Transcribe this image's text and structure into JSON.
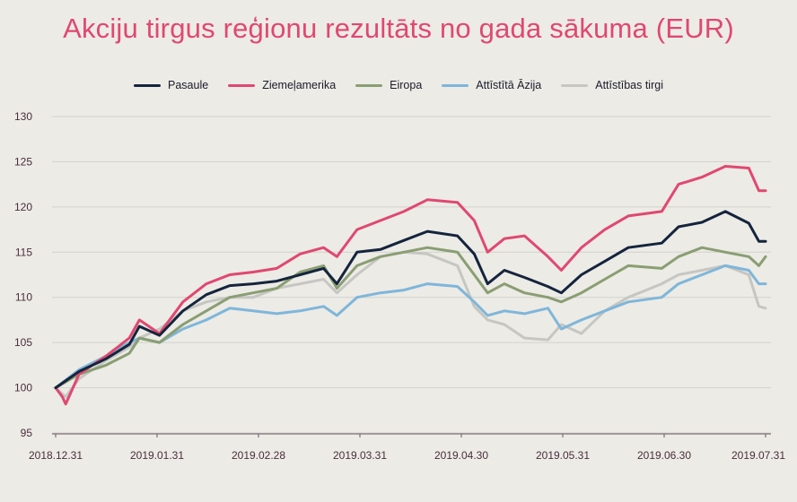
{
  "chart_data": {
    "type": "line",
    "title": "Akciju tirgus reģionu rezultāts no gada sākuma (EUR)",
    "xlabel": "",
    "ylabel": "",
    "ylim": [
      95,
      130
    ],
    "yticks": [
      95,
      100,
      105,
      110,
      115,
      120,
      125,
      130
    ],
    "x_tick_labels": [
      "2018.12.31",
      "2019.01.31",
      "2019.02.28",
      "2019.03.31",
      "2019.04.30",
      "2019.05.31",
      "2019.06.30",
      "2019.07.31"
    ],
    "x_start": "2018-12-31",
    "x_end": "2019-07-31",
    "grid": true,
    "legend_position": "top",
    "series": [
      {
        "name": "Pasaule",
        "color": "#15243d",
        "points": [
          [
            "2018-12-31",
            100
          ],
          [
            "2019-01-07",
            101.8
          ],
          [
            "2019-01-15",
            103.2
          ],
          [
            "2019-01-22",
            104.8
          ],
          [
            "2019-01-25",
            106.8
          ],
          [
            "2019-01-31",
            105.8
          ],
          [
            "2019-02-07",
            108.5
          ],
          [
            "2019-02-14",
            110.3
          ],
          [
            "2019-02-21",
            111.3
          ],
          [
            "2019-02-28",
            111.5
          ],
          [
            "2019-03-07",
            111.8
          ],
          [
            "2019-03-14",
            112.5
          ],
          [
            "2019-03-21",
            113.2
          ],
          [
            "2019-03-25",
            111.5
          ],
          [
            "2019-03-31",
            115.0
          ],
          [
            "2019-04-07",
            115.3
          ],
          [
            "2019-04-14",
            116.3
          ],
          [
            "2019-04-21",
            117.3
          ],
          [
            "2019-04-30",
            116.8
          ],
          [
            "2019-05-05",
            114.8
          ],
          [
            "2019-05-09",
            111.5
          ],
          [
            "2019-05-14",
            113.0
          ],
          [
            "2019-05-20",
            112.2
          ],
          [
            "2019-05-27",
            111.2
          ],
          [
            "2019-05-31",
            110.5
          ],
          [
            "2019-06-06",
            112.5
          ],
          [
            "2019-06-13",
            114.0
          ],
          [
            "2019-06-20",
            115.5
          ],
          [
            "2019-06-30",
            116.0
          ],
          [
            "2019-07-05",
            117.8
          ],
          [
            "2019-07-12",
            118.3
          ],
          [
            "2019-07-19",
            119.5
          ],
          [
            "2019-07-26",
            118.2
          ],
          [
            "2019-07-29",
            116.2
          ],
          [
            "2019-07-31",
            116.2
          ]
        ]
      },
      {
        "name": "Ziemeļamerika",
        "color": "#e04870",
        "points": [
          [
            "2018-12-31",
            100
          ],
          [
            "2019-01-02",
            99.0
          ],
          [
            "2019-01-03",
            98.2
          ],
          [
            "2019-01-07",
            101.5
          ],
          [
            "2019-01-15",
            103.5
          ],
          [
            "2019-01-22",
            105.5
          ],
          [
            "2019-01-25",
            107.5
          ],
          [
            "2019-01-31",
            106.0
          ],
          [
            "2019-02-07",
            109.5
          ],
          [
            "2019-02-14",
            111.5
          ],
          [
            "2019-02-21",
            112.5
          ],
          [
            "2019-02-28",
            112.8
          ],
          [
            "2019-03-07",
            113.2
          ],
          [
            "2019-03-14",
            114.8
          ],
          [
            "2019-03-21",
            115.5
          ],
          [
            "2019-03-25",
            114.5
          ],
          [
            "2019-03-31",
            117.5
          ],
          [
            "2019-04-07",
            118.5
          ],
          [
            "2019-04-14",
            119.5
          ],
          [
            "2019-04-21",
            120.8
          ],
          [
            "2019-04-30",
            120.5
          ],
          [
            "2019-05-05",
            118.5
          ],
          [
            "2019-05-09",
            115.0
          ],
          [
            "2019-05-14",
            116.5
          ],
          [
            "2019-05-20",
            116.8
          ],
          [
            "2019-05-27",
            114.5
          ],
          [
            "2019-05-31",
            113.0
          ],
          [
            "2019-06-06",
            115.5
          ],
          [
            "2019-06-13",
            117.5
          ],
          [
            "2019-06-20",
            119.0
          ],
          [
            "2019-06-30",
            119.5
          ],
          [
            "2019-07-05",
            122.5
          ],
          [
            "2019-07-12",
            123.3
          ],
          [
            "2019-07-19",
            124.5
          ],
          [
            "2019-07-26",
            124.3
          ],
          [
            "2019-07-29",
            121.8
          ],
          [
            "2019-07-31",
            121.8
          ]
        ]
      },
      {
        "name": "Eiropa",
        "color": "#8a9e72",
        "points": [
          [
            "2018-12-31",
            100
          ],
          [
            "2019-01-07",
            101.5
          ],
          [
            "2019-01-15",
            102.5
          ],
          [
            "2019-01-22",
            103.8
          ],
          [
            "2019-01-25",
            105.5
          ],
          [
            "2019-01-31",
            105.0
          ],
          [
            "2019-02-07",
            107.0
          ],
          [
            "2019-02-14",
            108.5
          ],
          [
            "2019-02-21",
            110.0
          ],
          [
            "2019-02-28",
            110.5
          ],
          [
            "2019-03-07",
            111.0
          ],
          [
            "2019-03-14",
            112.8
          ],
          [
            "2019-03-21",
            113.5
          ],
          [
            "2019-03-25",
            111.0
          ],
          [
            "2019-03-31",
            113.5
          ],
          [
            "2019-04-07",
            114.5
          ],
          [
            "2019-04-14",
            115.0
          ],
          [
            "2019-04-21",
            115.5
          ],
          [
            "2019-04-30",
            115.0
          ],
          [
            "2019-05-05",
            112.5
          ],
          [
            "2019-05-09",
            110.5
          ],
          [
            "2019-05-14",
            111.5
          ],
          [
            "2019-05-20",
            110.5
          ],
          [
            "2019-05-27",
            110.0
          ],
          [
            "2019-05-31",
            109.5
          ],
          [
            "2019-06-06",
            110.5
          ],
          [
            "2019-06-13",
            112.0
          ],
          [
            "2019-06-20",
            113.5
          ],
          [
            "2019-06-30",
            113.2
          ],
          [
            "2019-07-05",
            114.5
          ],
          [
            "2019-07-12",
            115.5
          ],
          [
            "2019-07-19",
            115.0
          ],
          [
            "2019-07-26",
            114.5
          ],
          [
            "2019-07-29",
            113.5
          ],
          [
            "2019-07-31",
            114.5
          ]
        ]
      },
      {
        "name": "Attīstītā Āzija",
        "color": "#7fb6da",
        "points": [
          [
            "2018-12-31",
            100
          ],
          [
            "2019-01-07",
            102.0
          ],
          [
            "2019-01-15",
            103.5
          ],
          [
            "2019-01-22",
            105.0
          ],
          [
            "2019-01-25",
            105.5
          ],
          [
            "2019-01-31",
            105.0
          ],
          [
            "2019-02-07",
            106.5
          ],
          [
            "2019-02-14",
            107.5
          ],
          [
            "2019-02-21",
            108.8
          ],
          [
            "2019-02-28",
            108.5
          ],
          [
            "2019-03-07",
            108.2
          ],
          [
            "2019-03-14",
            108.5
          ],
          [
            "2019-03-21",
            109.0
          ],
          [
            "2019-03-25",
            108.0
          ],
          [
            "2019-03-31",
            110.0
          ],
          [
            "2019-04-07",
            110.5
          ],
          [
            "2019-04-14",
            110.8
          ],
          [
            "2019-04-21",
            111.5
          ],
          [
            "2019-04-30",
            111.2
          ],
          [
            "2019-05-05",
            109.5
          ],
          [
            "2019-05-09",
            108.0
          ],
          [
            "2019-05-14",
            108.5
          ],
          [
            "2019-05-20",
            108.2
          ],
          [
            "2019-05-27",
            108.8
          ],
          [
            "2019-05-31",
            106.5
          ],
          [
            "2019-06-06",
            107.5
          ],
          [
            "2019-06-13",
            108.5
          ],
          [
            "2019-06-20",
            109.5
          ],
          [
            "2019-06-30",
            110.0
          ],
          [
            "2019-07-05",
            111.5
          ],
          [
            "2019-07-12",
            112.5
          ],
          [
            "2019-07-19",
            113.5
          ],
          [
            "2019-07-26",
            113.0
          ],
          [
            "2019-07-29",
            111.5
          ],
          [
            "2019-07-31",
            111.5
          ]
        ]
      },
      {
        "name": "Attīstības tirgi",
        "color": "#c6c6c2",
        "points": [
          [
            "2018-12-31",
            100
          ],
          [
            "2019-01-03",
            99.0
          ],
          [
            "2019-01-07",
            101.0
          ],
          [
            "2019-01-15",
            103.0
          ],
          [
            "2019-01-22",
            104.5
          ],
          [
            "2019-01-25",
            105.5
          ],
          [
            "2019-01-31",
            106.5
          ],
          [
            "2019-02-07",
            108.5
          ],
          [
            "2019-02-14",
            109.5
          ],
          [
            "2019-02-21",
            110.0
          ],
          [
            "2019-02-28",
            110.0
          ],
          [
            "2019-03-07",
            111.0
          ],
          [
            "2019-03-14",
            111.5
          ],
          [
            "2019-03-21",
            112.0
          ],
          [
            "2019-03-25",
            110.5
          ],
          [
            "2019-03-31",
            112.5
          ],
          [
            "2019-04-07",
            114.5
          ],
          [
            "2019-04-14",
            115.0
          ],
          [
            "2019-04-21",
            114.8
          ],
          [
            "2019-04-30",
            113.5
          ],
          [
            "2019-05-05",
            109.0
          ],
          [
            "2019-05-09",
            107.5
          ],
          [
            "2019-05-14",
            107.0
          ],
          [
            "2019-05-20",
            105.5
          ],
          [
            "2019-05-27",
            105.3
          ],
          [
            "2019-05-31",
            107.0
          ],
          [
            "2019-06-06",
            106.0
          ],
          [
            "2019-06-13",
            108.5
          ],
          [
            "2019-06-20",
            110.0
          ],
          [
            "2019-06-30",
            111.5
          ],
          [
            "2019-07-05",
            112.5
          ],
          [
            "2019-07-12",
            113.0
          ],
          [
            "2019-07-19",
            113.5
          ],
          [
            "2019-07-26",
            112.5
          ],
          [
            "2019-07-29",
            109.0
          ],
          [
            "2019-07-31",
            108.8
          ]
        ]
      }
    ]
  }
}
